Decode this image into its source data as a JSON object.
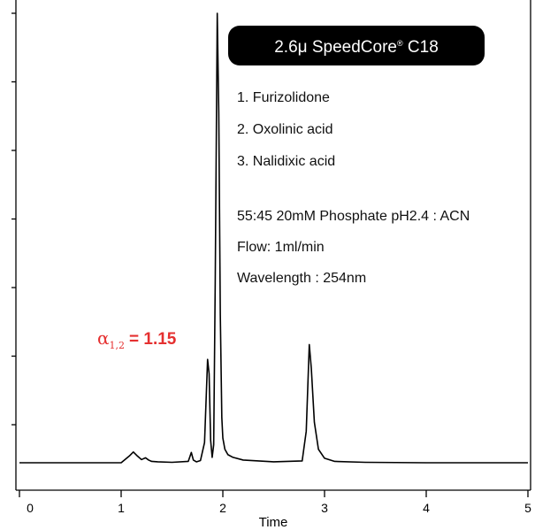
{
  "chart_data": {
    "type": "line",
    "xlabel": "Time",
    "ylabel": "",
    "xlim": [
      0,
      5
    ],
    "ylim": [
      0,
      1
    ],
    "x_ticks": [
      "0",
      "1",
      "2",
      "3",
      "4",
      "5"
    ],
    "y_tick_count": 7,
    "grid": false,
    "series": [
      {
        "x": [
          0.0,
          1.0,
          1.08,
          1.12,
          1.16,
          1.2,
          1.24,
          1.27,
          1.3,
          1.36,
          1.5,
          1.66,
          1.69,
          1.71,
          1.74,
          1.78,
          1.82,
          1.85,
          1.865,
          1.88,
          1.895,
          1.91,
          1.925,
          1.945,
          1.96,
          1.975,
          1.99,
          2.0,
          2.02,
          2.05,
          2.1,
          2.2,
          2.5,
          2.78,
          2.82,
          2.85,
          2.87,
          2.9,
          2.94,
          3.0,
          3.1,
          3.4,
          4.0,
          5.0
        ],
        "y": [
          0.0,
          0.0,
          0.015,
          0.024,
          0.015,
          0.007,
          0.011,
          0.006,
          0.003,
          0.002,
          0.001,
          0.003,
          0.023,
          0.006,
          0.002,
          0.005,
          0.045,
          0.23,
          0.198,
          0.05,
          0.012,
          0.04,
          0.4,
          1.0,
          0.78,
          0.33,
          0.1,
          0.055,
          0.03,
          0.018,
          0.012,
          0.006,
          0.002,
          0.004,
          0.07,
          0.263,
          0.21,
          0.09,
          0.03,
          0.01,
          0.003,
          0.001,
          0.0,
          0.0
        ]
      }
    ],
    "annotations": {
      "column_title": "2.6μ SpeedCore",
      "column_reg": "®",
      "column_suffix": " C18",
      "peaks": [
        "1. Furizolidone",
        "2. Oxolinic acid",
        "3. Nalidixic acid"
      ],
      "conditions": [
        "55:45 20mM Phosphate pH2.4 : ACN",
        "Flow: 1ml/min",
        "Wavelength : 254nm"
      ],
      "alpha_symbol": "α",
      "alpha_subscript": "1,2",
      "alpha_value": "= 1.15"
    },
    "colors": {
      "trace": "#000000",
      "title_box": "#000000",
      "alpha": "#e53030"
    }
  }
}
